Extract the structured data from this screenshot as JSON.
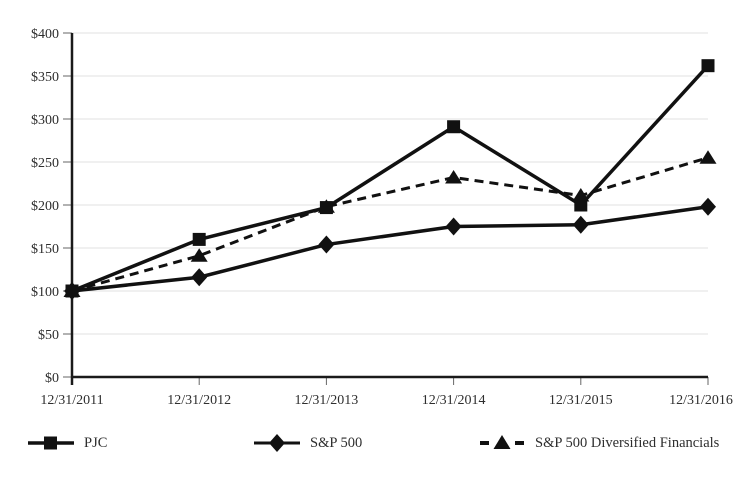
{
  "chart_data": {
    "type": "line",
    "x": [
      "12/31/2011",
      "12/31/2012",
      "12/31/2013",
      "12/31/2014",
      "12/31/2015",
      "12/31/2016"
    ],
    "series": [
      {
        "name": "PJC",
        "marker": "square",
        "line": "solid",
        "values": [
          100,
          160,
          197,
          291,
          200,
          362
        ]
      },
      {
        "name": "S&P 500",
        "marker": "diamond",
        "line": "solid",
        "values": [
          100,
          116,
          154,
          175,
          177,
          198
        ]
      },
      {
        "name": "S&P 500 Diversified Financials",
        "marker": "triangle",
        "line": "dashed",
        "values": [
          100,
          141,
          198,
          232,
          211,
          255
        ]
      }
    ],
    "ylim": [
      0,
      400
    ],
    "ytick_step": 50,
    "ytick_labels": [
      "$0",
      "$50",
      "$100",
      "$150",
      "$200",
      "$250",
      "$300",
      "$350",
      "$400"
    ],
    "grid": true,
    "legend_position": "bottom",
    "colors": {
      "series": "#111111",
      "grid": "#e0e0e0",
      "axis": "#1a1a1a",
      "tick": "#666666",
      "text": "#2e2e2e"
    }
  }
}
